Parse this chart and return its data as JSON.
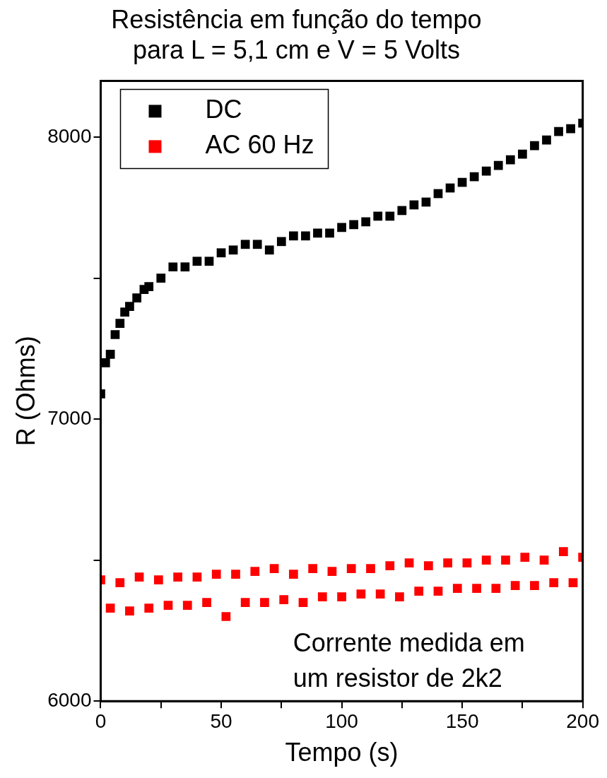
{
  "chart_data": {
    "type": "scatter",
    "title": "Resistência em função do tempo para L = 5,1 cm e V = 5 Volts",
    "xlabel": "Tempo (s)",
    "ylabel": "R (Ohms)",
    "xlim": [
      0,
      200
    ],
    "xticks": [
      0,
      {
        "value": 25,
        "label": null
      },
      50,
      {
        "value": 75,
        "label": null
      },
      100,
      {
        "value": 125,
        "label": null
      },
      150,
      {
        "value": 175,
        "label": null
      },
      200
    ],
    "ylim": [
      6000,
      8200
    ],
    "yticks": [
      6000,
      {
        "value": 6500,
        "label": null
      },
      7000,
      {
        "value": 7500,
        "label": null
      },
      8000
    ],
    "grid": false,
    "legend": "top left",
    "marker": "square",
    "annotations": [
      "Corrente medida em um resistor de 2k2"
    ],
    "series": [
      {
        "name": "DC",
        "color": "#000000",
        "x": [
          0,
          2,
          4,
          6,
          8,
          10,
          12,
          15,
          18,
          20,
          25,
          30,
          35,
          40,
          45,
          50,
          55,
          60,
          65,
          70,
          75,
          80,
          85,
          90,
          95,
          100,
          105,
          110,
          115,
          120,
          125,
          130,
          135,
          140,
          145,
          150,
          155,
          160,
          165,
          170,
          175,
          180,
          185,
          190,
          195,
          200
        ],
        "values": [
          7090,
          7200,
          7230,
          7300,
          7340,
          7380,
          7400,
          7430,
          7460,
          7470,
          7500,
          7540,
          7540,
          7560,
          7560,
          7590,
          7600,
          7620,
          7620,
          7600,
          7630,
          7650,
          7650,
          7660,
          7660,
          7680,
          7690,
          7700,
          7720,
          7720,
          7740,
          7760,
          7770,
          7800,
          7820,
          7840,
          7860,
          7880,
          7900,
          7920,
          7940,
          7970,
          7990,
          8020,
          8030,
          8050
        ]
      },
      {
        "name": "AC 60 Hz",
        "color": "#ff0000",
        "x": [
          0,
          4,
          8,
          12,
          16,
          20,
          24,
          28,
          32,
          36,
          40,
          44,
          48,
          52,
          56,
          60,
          64,
          68,
          72,
          76,
          80,
          84,
          88,
          92,
          96,
          100,
          104,
          108,
          112,
          116,
          120,
          124,
          128,
          132,
          136,
          140,
          144,
          148,
          152,
          156,
          160,
          164,
          168,
          172,
          176,
          180,
          184,
          188,
          192,
          196,
          200
        ],
        "values": [
          6430,
          6330,
          6420,
          6320,
          6440,
          6330,
          6430,
          6340,
          6440,
          6340,
          6440,
          6350,
          6450,
          6300,
          6450,
          6350,
          6460,
          6350,
          6470,
          6360,
          6450,
          6350,
          6470,
          6370,
          6460,
          6370,
          6470,
          6380,
          6470,
          6380,
          6480,
          6370,
          6490,
          6390,
          6480,
          6390,
          6490,
          6400,
          6490,
          6400,
          6500,
          6400,
          6500,
          6410,
          6510,
          6410,
          6500,
          6420,
          6530,
          6420,
          6510
        ]
      }
    ]
  }
}
